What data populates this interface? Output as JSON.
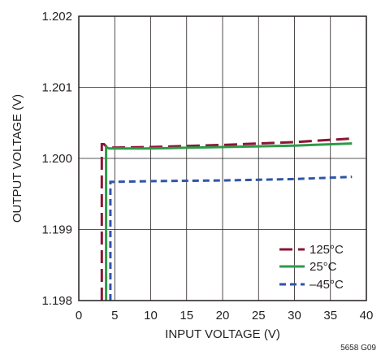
{
  "title_fragment": "",
  "figure_code": "5658 G09",
  "colors": {
    "t125": "#8b1535",
    "t25": "#2e9a48",
    "tm45": "#2f54a8",
    "grid": "#231f20"
  },
  "chart_data": {
    "type": "line",
    "xlabel": "INPUT VOLTAGE (V)",
    "ylabel": "OUTPUT VOLTAGE (V)",
    "xlim": [
      0,
      40
    ],
    "ylim": [
      1.198,
      1.202
    ],
    "xticks": [
      0,
      5,
      10,
      15,
      20,
      25,
      30,
      35,
      40
    ],
    "yticks": [
      1.198,
      1.199,
      1.2,
      1.201,
      1.202
    ],
    "ytick_labels": [
      "1.198",
      "1.199",
      "1.200",
      "1.201",
      "1.202"
    ],
    "grid": true,
    "legend_position": "bottom-right",
    "series": [
      {
        "name": "125°C",
        "color": "#8b1535",
        "dash": "long-dash",
        "x": [
          3.2,
          3.2,
          3.5,
          4.0,
          10,
          20,
          30,
          38
        ],
        "y": [
          1.198,
          1.2002,
          1.2002,
          1.20015,
          1.20016,
          1.20019,
          1.20023,
          1.20028
        ]
      },
      {
        "name": "25°C",
        "color": "#2e9a48",
        "dash": "solid",
        "x": [
          3.8,
          3.8,
          4.2,
          10,
          20,
          30,
          38
        ],
        "y": [
          1.198,
          1.20016,
          1.20014,
          1.20014,
          1.20016,
          1.20018,
          1.20021
        ]
      },
      {
        "name": "–45°C",
        "color": "#2f54a8",
        "dash": "short-dash",
        "x": [
          4.4,
          4.4,
          5.0,
          10,
          20,
          30,
          38
        ],
        "y": [
          1.198,
          1.19967,
          1.19967,
          1.19968,
          1.19969,
          1.19971,
          1.19974
        ]
      }
    ]
  }
}
